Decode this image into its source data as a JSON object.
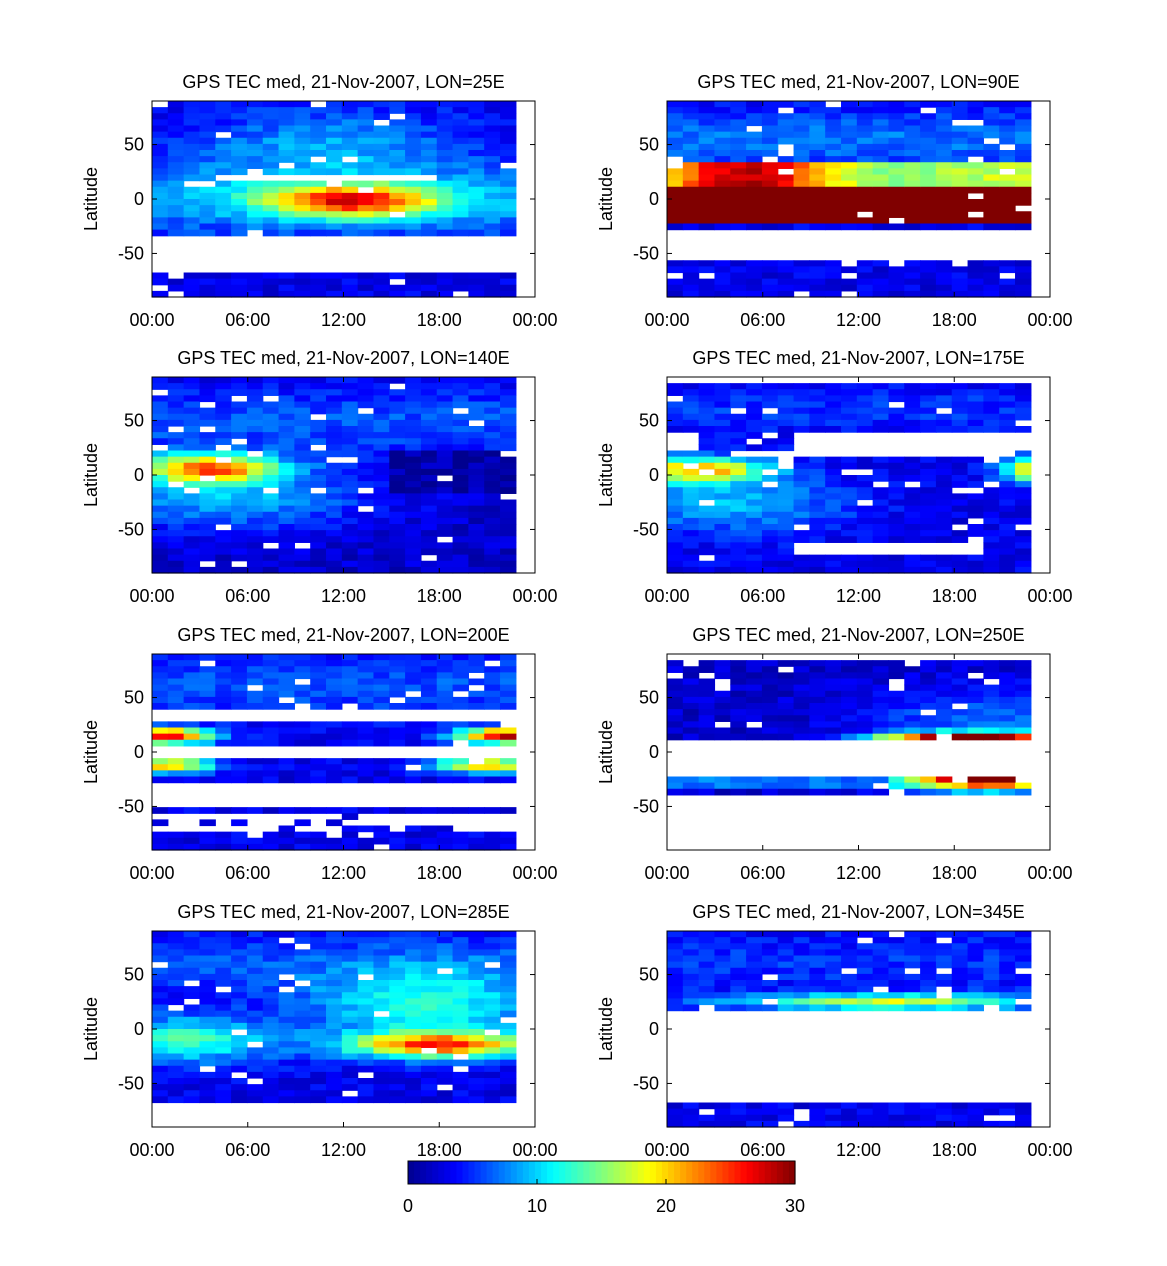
{
  "colormap": {
    "name": "jet",
    "stops": [
      "#00008f",
      "#0000ff",
      "#00ffff",
      "#ffff00",
      "#ff0000",
      "#800000"
    ]
  },
  "chart_data": [
    {
      "type": "heatmap",
      "title": "GPS TEC med, 21-Nov-2007, LON=25E",
      "xlabel": "",
      "ylabel": "Latitude",
      "xticks": [
        "00:00",
        "06:00",
        "12:00",
        "18:00",
        "00:00"
      ],
      "yticks": [
        "50",
        "0",
        "-50"
      ],
      "xlim_hours": [
        0,
        24
      ],
      "ylim": [
        -90,
        90
      ],
      "clim": [
        0,
        30
      ],
      "profile": "p25"
    },
    {
      "type": "heatmap",
      "title": "GPS TEC med, 21-Nov-2007, LON=90E",
      "xlabel": "",
      "ylabel": "Latitude",
      "xticks": [
        "00:00",
        "06:00",
        "12:00",
        "18:00",
        "00:00"
      ],
      "yticks": [
        "50",
        "0",
        "-50"
      ],
      "xlim_hours": [
        0,
        24
      ],
      "ylim": [
        -90,
        90
      ],
      "clim": [
        0,
        30
      ],
      "profile": "p90"
    },
    {
      "type": "heatmap",
      "title": "GPS TEC med, 21-Nov-2007, LON=140E",
      "xlabel": "",
      "ylabel": "Latitude",
      "xticks": [
        "00:00",
        "06:00",
        "12:00",
        "18:00",
        "00:00"
      ],
      "yticks": [
        "50",
        "0",
        "-50"
      ],
      "xlim_hours": [
        0,
        24
      ],
      "ylim": [
        -90,
        90
      ],
      "clim": [
        0,
        30
      ],
      "profile": "p140"
    },
    {
      "type": "heatmap",
      "title": "GPS TEC med, 21-Nov-2007, LON=175E",
      "xlabel": "",
      "ylabel": "Latitude",
      "xticks": [
        "00:00",
        "06:00",
        "12:00",
        "18:00",
        "00:00"
      ],
      "yticks": [
        "50",
        "0",
        "-50"
      ],
      "xlim_hours": [
        0,
        24
      ],
      "ylim": [
        -90,
        90
      ],
      "clim": [
        0,
        30
      ],
      "profile": "p175"
    },
    {
      "type": "heatmap",
      "title": "GPS TEC med, 21-Nov-2007, LON=200E",
      "xlabel": "",
      "ylabel": "Latitude",
      "xticks": [
        "00:00",
        "06:00",
        "12:00",
        "18:00",
        "00:00"
      ],
      "yticks": [
        "50",
        "0",
        "-50"
      ],
      "xlim_hours": [
        0,
        24
      ],
      "ylim": [
        -90,
        90
      ],
      "clim": [
        0,
        30
      ],
      "profile": "p200"
    },
    {
      "type": "heatmap",
      "title": "GPS TEC med, 21-Nov-2007, LON=250E",
      "xlabel": "",
      "ylabel": "Latitude",
      "xticks": [
        "00:00",
        "06:00",
        "12:00",
        "18:00",
        "00:00"
      ],
      "yticks": [
        "50",
        "0",
        "-50"
      ],
      "xlim_hours": [
        0,
        24
      ],
      "ylim": [
        -90,
        90
      ],
      "clim": [
        0,
        30
      ],
      "profile": "p250"
    },
    {
      "type": "heatmap",
      "title": "GPS TEC med, 21-Nov-2007, LON=285E",
      "xlabel": "",
      "ylabel": "Latitude",
      "xticks": [
        "00:00",
        "06:00",
        "12:00",
        "18:00",
        "00:00"
      ],
      "yticks": [
        "50",
        "0",
        "-50"
      ],
      "xlim_hours": [
        0,
        24
      ],
      "ylim": [
        -90,
        90
      ],
      "clim": [
        0,
        30
      ],
      "profile": "p285"
    },
    {
      "type": "heatmap",
      "title": "GPS TEC med, 21-Nov-2007, LON=345E",
      "xlabel": "",
      "ylabel": "Latitude",
      "xticks": [
        "00:00",
        "06:00",
        "12:00",
        "18:00",
        "00:00"
      ],
      "yticks": [
        "50",
        "0",
        "-50"
      ],
      "xlim_hours": [
        0,
        24
      ],
      "ylim": [
        -90,
        90
      ],
      "clim": [
        0,
        30
      ],
      "profile": "p345"
    }
  ],
  "colorbar": {
    "ticks": [
      "0",
      "10",
      "20",
      "30"
    ],
    "range": [
      0,
      30
    ]
  }
}
